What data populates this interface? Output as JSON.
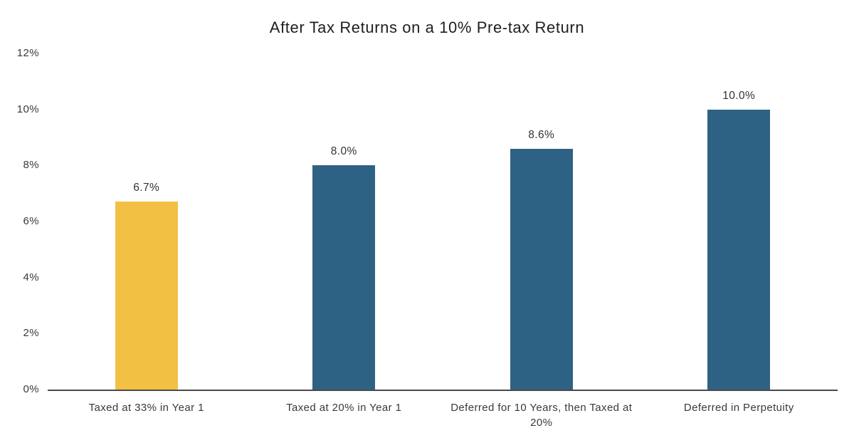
{
  "title": "After Tax Returns on a 10% Pre-tax Return",
  "colors": {
    "highlight_bar": "#F2C144",
    "default_bar": "#2E6284",
    "axis_line": "#4a4a4a",
    "label_text": "#3a3a3a",
    "title_text": "#1e1e1e",
    "background": "#ffffff"
  },
  "chart_data": {
    "type": "bar",
    "title": "After Tax Returns on a 10% Pre-tax Return",
    "categories": [
      "Taxed at 33% in Year 1",
      "Taxed at 20% in Year 1",
      "Deferred for 10 Years, then Taxed at 20%",
      "Deferred in Perpetuity"
    ],
    "values": [
      6.7,
      8.0,
      8.6,
      10.0
    ],
    "value_labels": [
      "6.7%",
      "8.0%",
      "8.6%",
      "10.0%"
    ],
    "bar_colors": [
      "#F2C144",
      "#2E6284",
      "#2E6284",
      "#2E6284"
    ],
    "xlabel": "",
    "ylabel": "",
    "ylim": [
      0,
      12
    ],
    "yticks": [
      0,
      2,
      4,
      6,
      8,
      10,
      12
    ],
    "ytick_labels": [
      "0%",
      "2%",
      "4%",
      "6%",
      "8%",
      "10%",
      "12%"
    ],
    "grid": false,
    "legend": false,
    "legend_position": "none"
  }
}
